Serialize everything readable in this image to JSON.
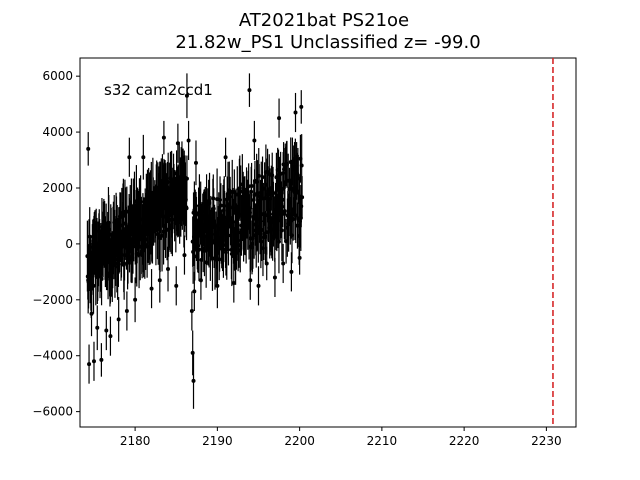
{
  "chart_data": {
    "type": "scatter",
    "title_line1": "AT2021bat  PS21oe",
    "title_line2": "21.82w_PS1 Unclassified z= -99.0",
    "annotation": "s32 cam2ccd1",
    "xlabel": "",
    "ylabel": "",
    "xlim": [
      2173.3,
      2233.6
    ],
    "ylim": [
      -6550,
      6650
    ],
    "xticks": [
      2180,
      2190,
      2200,
      2210,
      2220,
      2230
    ],
    "yticks": [
      -6000,
      -4000,
      -2000,
      0,
      2000,
      4000,
      6000
    ],
    "grid": false,
    "marker_color": "#000000",
    "vline": {
      "x": 2230.8,
      "color": "#d62728",
      "style": "dashed"
    },
    "segments": [
      {
        "x_start": 2174.2,
        "x_end": 2186.3,
        "y_low_start": -1800,
        "y_low_end": 900,
        "y_high_start": 300,
        "y_high_end": 2800,
        "err_start": 1100,
        "err_end": 1100
      },
      {
        "x_start": 2187.0,
        "x_end": 2200.3,
        "y_low_start": -800,
        "y_low_end": 200,
        "y_high_start": 1300,
        "y_high_end": 3200,
        "err_start": 1000,
        "err_end": 1000
      }
    ],
    "points": [
      {
        "x": 2174.3,
        "y": 3400,
        "err": 600
      },
      {
        "x": 2174.4,
        "y": -4300,
        "err": 700
      },
      {
        "x": 2174.7,
        "y": -2500,
        "err": 800
      },
      {
        "x": 2175.0,
        "y": -4200,
        "err": 700
      },
      {
        "x": 2175.4,
        "y": -3000,
        "err": 800
      },
      {
        "x": 2175.9,
        "y": -4150,
        "err": 600
      },
      {
        "x": 2176.5,
        "y": -3100,
        "err": 700
      },
      {
        "x": 2177.0,
        "y": -3300,
        "err": 700
      },
      {
        "x": 2178.0,
        "y": -2700,
        "err": 800
      },
      {
        "x": 2179.0,
        "y": -2400,
        "err": 700
      },
      {
        "x": 2179.3,
        "y": 3100,
        "err": 700
      },
      {
        "x": 2180.0,
        "y": -2000,
        "err": 800
      },
      {
        "x": 2181.0,
        "y": 3100,
        "err": 800
      },
      {
        "x": 2182.0,
        "y": -1600,
        "err": 700
      },
      {
        "x": 2183.0,
        "y": -1300,
        "err": 800
      },
      {
        "x": 2183.5,
        "y": 3800,
        "err": 600
      },
      {
        "x": 2184.0,
        "y": -900,
        "err": 800
      },
      {
        "x": 2185.0,
        "y": -1500,
        "err": 700
      },
      {
        "x": 2185.2,
        "y": 3600,
        "err": 700
      },
      {
        "x": 2186.0,
        "y": -400,
        "err": 700
      },
      {
        "x": 2186.3,
        "y": 5300,
        "err": 800
      },
      {
        "x": 2186.5,
        "y": 3700,
        "err": 700
      },
      {
        "x": 2186.9,
        "y": -2400,
        "err": 700
      },
      {
        "x": 2187.0,
        "y": -3900,
        "err": 800
      },
      {
        "x": 2187.1,
        "y": -4900,
        "err": 1000
      },
      {
        "x": 2187.2,
        "y": -1700,
        "err": 700
      },
      {
        "x": 2187.4,
        "y": 2900,
        "err": 800
      },
      {
        "x": 2188.0,
        "y": -1300,
        "err": 700
      },
      {
        "x": 2190.0,
        "y": -1500,
        "err": 800
      },
      {
        "x": 2191.0,
        "y": 3100,
        "err": 700
      },
      {
        "x": 2192.0,
        "y": -1400,
        "err": 700
      },
      {
        "x": 2193.9,
        "y": 5500,
        "err": 600
      },
      {
        "x": 2194.0,
        "y": -1300,
        "err": 700
      },
      {
        "x": 2194.5,
        "y": 3700,
        "err": 700
      },
      {
        "x": 2195.0,
        "y": -1500,
        "err": 700
      },
      {
        "x": 2196.0,
        "y": -700,
        "err": 600
      },
      {
        "x": 2197.0,
        "y": -1200,
        "err": 700
      },
      {
        "x": 2197.5,
        "y": 4500,
        "err": 700
      },
      {
        "x": 2198.0,
        "y": -700,
        "err": 700
      },
      {
        "x": 2199.0,
        "y": -1000,
        "err": 700
      },
      {
        "x": 2199.5,
        "y": 4700,
        "err": 700
      },
      {
        "x": 2200.0,
        "y": -500,
        "err": 600
      },
      {
        "x": 2200.2,
        "y": 4900,
        "err": 600
      }
    ]
  }
}
